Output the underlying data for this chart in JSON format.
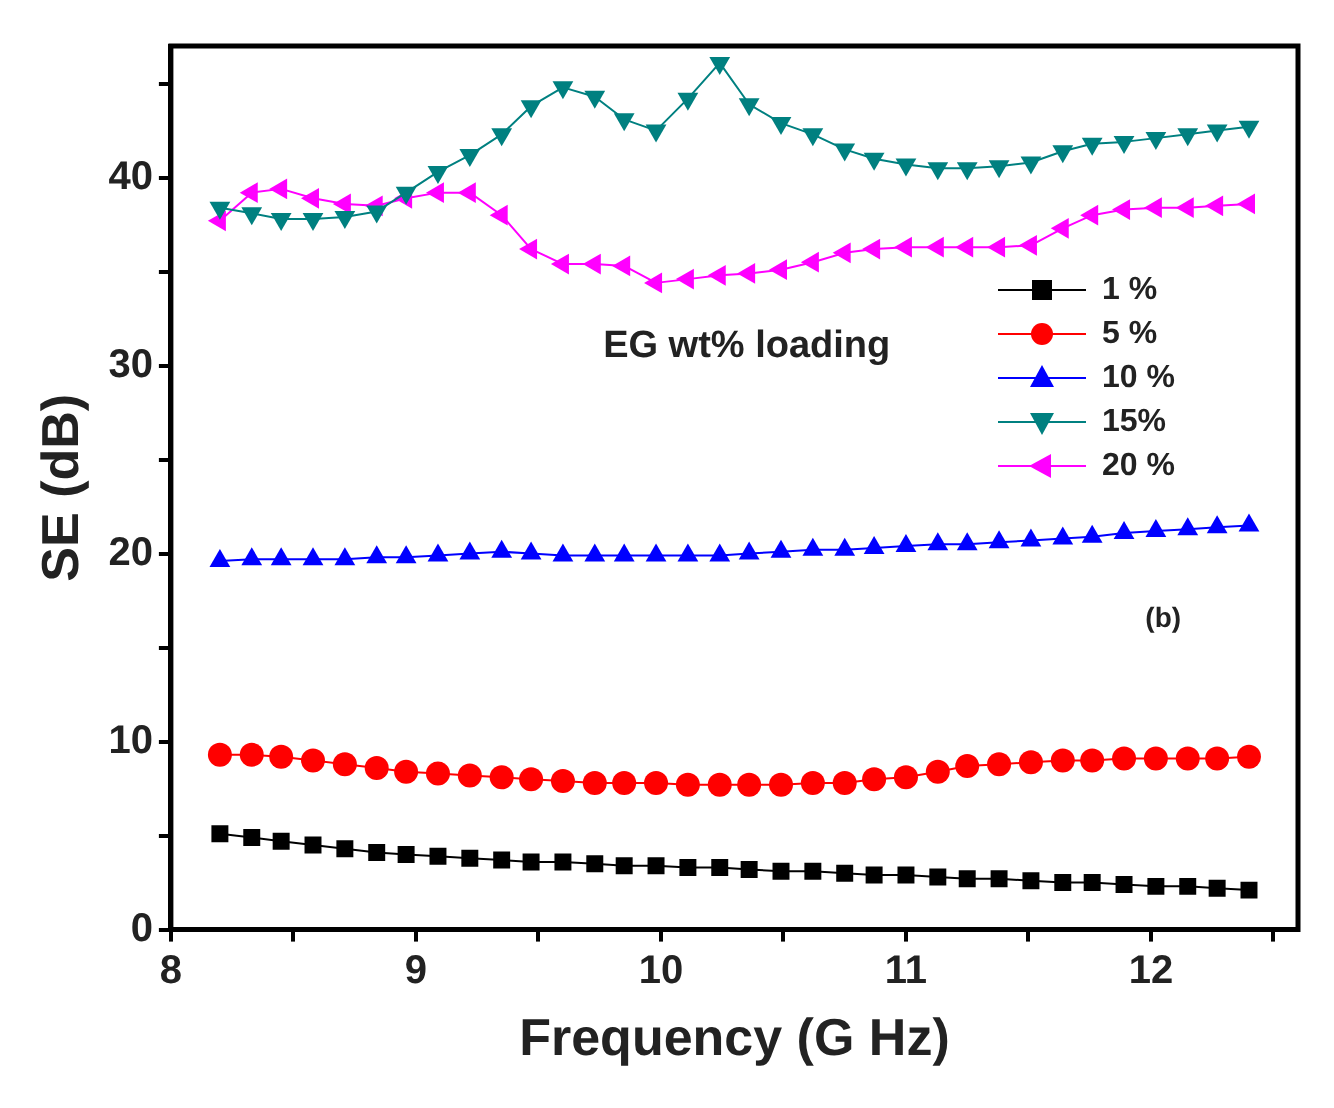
{
  "chart_data": {
    "type": "line",
    "xlabel": "Frequency (G Hz)",
    "ylabel": "SE (dB)",
    "x": [
      8.2,
      8.33,
      8.45,
      8.58,
      8.71,
      8.84,
      8.96,
      9.09,
      9.22,
      9.35,
      9.47,
      9.6,
      9.73,
      9.85,
      9.98,
      10.11,
      10.24,
      10.36,
      10.49,
      10.62,
      10.75,
      10.87,
      11.0,
      11.13,
      11.25,
      11.38,
      11.51,
      11.64,
      11.76,
      11.89,
      12.02,
      12.15,
      12.27,
      12.4
    ],
    "series": [
      {
        "name": "1 %",
        "color": "#000000",
        "marker": "square",
        "values": [
          5.1,
          4.9,
          4.7,
          4.5,
          4.3,
          4.1,
          4.0,
          3.9,
          3.8,
          3.7,
          3.6,
          3.6,
          3.5,
          3.4,
          3.4,
          3.3,
          3.3,
          3.2,
          3.1,
          3.1,
          3.0,
          2.9,
          2.9,
          2.8,
          2.7,
          2.7,
          2.6,
          2.5,
          2.5,
          2.4,
          2.3,
          2.3,
          2.2,
          2.1
        ]
      },
      {
        "name": "5 %",
        "color": "#ff0000",
        "marker": "circle",
        "values": [
          9.3,
          9.3,
          9.2,
          9.0,
          8.8,
          8.6,
          8.4,
          8.3,
          8.2,
          8.1,
          8.0,
          7.9,
          7.8,
          7.8,
          7.8,
          7.7,
          7.7,
          7.7,
          7.7,
          7.8,
          7.8,
          8.0,
          8.1,
          8.4,
          8.7,
          8.8,
          8.9,
          9.0,
          9.0,
          9.1,
          9.1,
          9.1,
          9.1,
          9.2
        ]
      },
      {
        "name": "10 %",
        "color": "#0000ff",
        "marker": "triangle",
        "values": [
          19.6,
          19.7,
          19.7,
          19.7,
          19.7,
          19.8,
          19.8,
          19.9,
          20.0,
          20.1,
          20.0,
          19.9,
          19.9,
          19.9,
          19.9,
          19.9,
          19.9,
          20.0,
          20.1,
          20.2,
          20.2,
          20.3,
          20.4,
          20.5,
          20.5,
          20.6,
          20.7,
          20.8,
          20.9,
          21.1,
          21.2,
          21.3,
          21.4,
          21.5
        ]
      },
      {
        "name": "15%",
        "color": "#008080",
        "marker": "triangle-down",
        "values": [
          38.4,
          38.1,
          37.8,
          37.8,
          37.9,
          38.2,
          39.2,
          40.3,
          41.2,
          42.3,
          43.8,
          44.8,
          44.3,
          43.1,
          42.5,
          44.2,
          46.1,
          43.9,
          42.9,
          42.3,
          41.5,
          41.0,
          40.7,
          40.5,
          40.5,
          40.6,
          40.8,
          41.4,
          41.8,
          41.9,
          42.1,
          42.3,
          42.5,
          42.7
        ]
      },
      {
        "name": "20 %",
        "color": "#ff00ff",
        "marker": "triangle-left",
        "values": [
          37.7,
          39.2,
          39.4,
          38.9,
          38.6,
          38.5,
          38.9,
          39.2,
          39.2,
          38.0,
          36.2,
          35.4,
          35.4,
          35.3,
          34.4,
          34.6,
          34.8,
          34.9,
          35.1,
          35.5,
          36.0,
          36.2,
          36.3,
          36.3,
          36.3,
          36.3,
          36.4,
          37.3,
          38.0,
          38.3,
          38.4,
          38.4,
          38.5,
          38.6
        ]
      }
    ],
    "xlim": [
      8,
      12.6
    ],
    "xticks": [
      8,
      {
        "value": 8.5,
        "label": null
      },
      9,
      {
        "value": 9.5,
        "label": null
      },
      10,
      {
        "value": 10.5,
        "label": null
      },
      11,
      {
        "value": 11.5,
        "label": null
      },
      12,
      {
        "value": 12.5,
        "label": null
      }
    ],
    "ylim": [
      0,
      47
    ],
    "yticks": [
      0,
      {
        "value": 5,
        "label": null
      },
      10,
      {
        "value": 15,
        "label": null
      },
      20,
      {
        "value": 25,
        "label": null
      },
      30,
      {
        "value": 35,
        "label": null
      },
      40,
      {
        "value": 45,
        "label": null
      }
    ],
    "grid": false,
    "legend": "right",
    "line_style": "solid",
    "annotations": [
      "EG wt% loading",
      "(b)"
    ]
  }
}
